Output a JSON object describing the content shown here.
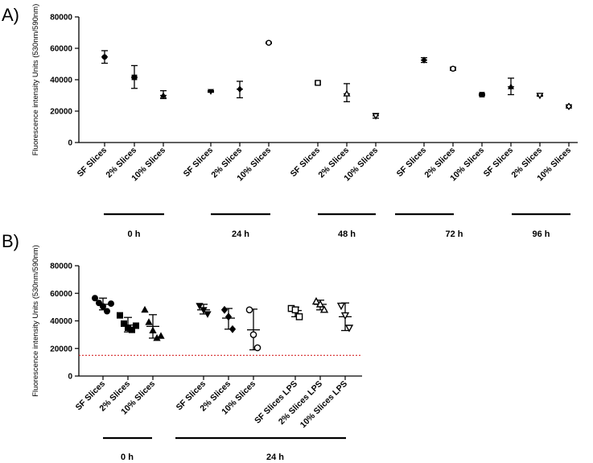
{
  "chart_data": [
    {
      "panel": "A)",
      "type": "scatter",
      "ylabel": "Fluorescence intensity Units (530nm/590nm)",
      "ylim": [
        0,
        80000
      ],
      "yticks": [
        "0",
        "20000",
        "40000",
        "60000",
        "80000"
      ],
      "grid": false,
      "categories": [
        {
          "label": "SF Slices",
          "mean": 54500,
          "low": 50500,
          "high": 58500,
          "marker": "circle"
        },
        {
          "label": "2% Slices",
          "mean": 41500,
          "low": 34500,
          "high": 49000,
          "marker": "square"
        },
        {
          "label": "10% Slices",
          "mean": 30000,
          "low": 28000,
          "high": 33000,
          "marker": "triangle"
        },
        {
          "label": "SF Slices",
          "mean": 32500,
          "low": 32000,
          "high": 33000,
          "marker": "triangle-down"
        },
        {
          "label": "2% Slices",
          "mean": 34000,
          "low": 28500,
          "high": 39000,
          "marker": "diamond"
        },
        {
          "label": "10% Slices",
          "mean": 63500,
          "low": 63000,
          "high": 64000,
          "marker": "circle-open"
        },
        {
          "label": "SF Slices",
          "mean": 38000,
          "low": 37000,
          "high": 39000,
          "marker": "square-open"
        },
        {
          "label": "2% Slices",
          "mean": 31000,
          "low": 26000,
          "high": 37500,
          "marker": "triangle-open"
        },
        {
          "label": "10% Slices",
          "mean": 17000,
          "low": 15500,
          "high": 18500,
          "marker": "triangle-down-open"
        },
        {
          "label": "SF Slices",
          "mean": 52500,
          "low": 51000,
          "high": 54000,
          "marker": "diamond"
        },
        {
          "label": "2% Slices",
          "mean": 47000,
          "low": 46000,
          "high": 48000,
          "marker": "circle-open"
        },
        {
          "label": "10% Slices",
          "mean": 30500,
          "low": 30000,
          "high": 31000,
          "marker": "square"
        },
        {
          "label": "SF Slices",
          "mean": 35500,
          "low": 30500,
          "high": 41000,
          "marker": "triangle"
        },
        {
          "label": "2% Slices",
          "mean": 30000,
          "low": 29500,
          "high": 31000,
          "marker": "triangle-down-open"
        },
        {
          "label": "10% Slices",
          "mean": 23000,
          "low": 22000,
          "high": 24000,
          "marker": "diamond-open"
        }
      ],
      "groups": [
        {
          "label": "0 h",
          "from": 0,
          "to": 2
        },
        {
          "label": "24 h",
          "from": 3,
          "to": 5
        },
        {
          "label": "48 h",
          "from": 6,
          "to": 8
        },
        {
          "label": "72 h",
          "from": 9,
          "to": 10
        },
        {
          "label": "96 h",
          "from": 12,
          "to": 14
        }
      ]
    },
    {
      "panel": "B)",
      "type": "scatter",
      "ylabel": "Fluorescence intensity Units (530nm/590nm)",
      "ylim": [
        0,
        80000
      ],
      "yticks": [
        "0",
        "20000",
        "40000",
        "60000",
        "80000"
      ],
      "grid": false,
      "reference_line": {
        "y": 15000,
        "style": "dotted",
        "color": "#d62728"
      },
      "categories": [
        {
          "label": "SF Slices",
          "mean": 52000,
          "low": 48000,
          "high": 56500,
          "marker": "circle",
          "points": [
            56500,
            53000,
            50500,
            47000,
            52500
          ]
        },
        {
          "label": "2% Slices",
          "mean": 37000,
          "low": 32000,
          "high": 42500,
          "marker": "square",
          "points": [
            44000,
            38000,
            35000,
            33500,
            36500
          ]
        },
        {
          "label": "10% Slices",
          "mean": 36000,
          "low": 27500,
          "high": 44500,
          "marker": "triangle",
          "points": [
            48000,
            39000,
            33000,
            27500,
            29000
          ]
        },
        {
          "label": "SF Slices",
          "mean": 48000,
          "low": 45000,
          "high": 52000,
          "marker": "triangle-down",
          "points": [
            51000,
            48000,
            45000
          ]
        },
        {
          "label": "2% Slices",
          "mean": 42000,
          "low": 34000,
          "high": 49000,
          "marker": "diamond",
          "points": [
            48000,
            43000,
            34000
          ]
        },
        {
          "label": "10% Slices",
          "mean": 33500,
          "low": 19000,
          "high": 48500,
          "marker": "circle-open",
          "points": [
            48000,
            30000,
            20500
          ]
        },
        {
          "label": "SF Slices LPS",
          "mean": 47500,
          "low": 43000,
          "high": 50000,
          "marker": "square-open",
          "points": [
            49000,
            48000,
            43000
          ]
        },
        {
          "label": "2% Slices LPS",
          "mean": 52000,
          "low": 48000,
          "high": 55000,
          "marker": "triangle-open",
          "points": [
            54000,
            52000,
            48000
          ]
        },
        {
          "label": "10% Slices LPS",
          "mean": 43000,
          "low": 33000,
          "high": 53000,
          "marker": "triangle-down-open",
          "points": [
            51000,
            44000,
            35000
          ]
        }
      ],
      "groups": [
        {
          "label": "0 h",
          "from": 0,
          "to": 2
        },
        {
          "label": "24 h",
          "from": 3,
          "to": 8
        }
      ]
    }
  ]
}
